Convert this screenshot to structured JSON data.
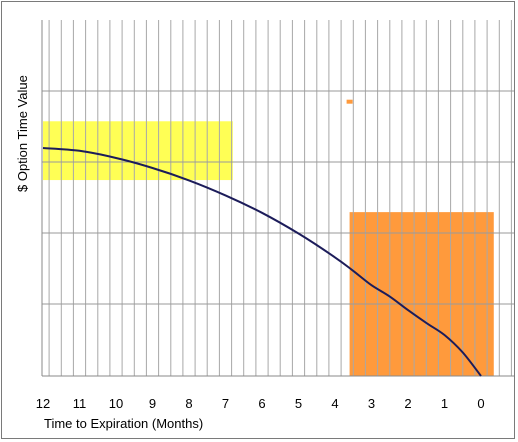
{
  "chart_data": {
    "type": "line",
    "title": "",
    "xlabel": "Time to Expiration (Months)",
    "ylabel": "$ Option Time Value",
    "x_ticks": [
      12,
      11,
      10,
      9,
      8,
      7,
      6,
      5,
      4,
      3,
      2,
      1,
      0
    ],
    "x_reversed": true,
    "xlim": [
      12,
      0
    ],
    "ylim": [
      0,
      1
    ],
    "y_tick_labels": [],
    "grid": "on",
    "legend": "none",
    "series": [
      {
        "x": [
          12,
          11,
          10,
          9,
          8,
          7,
          6,
          5,
          4,
          3.5,
          3,
          2.5,
          2,
          1.5,
          1,
          0.5,
          0
        ],
        "y": [
          0.64,
          0.632,
          0.612,
          0.584,
          0.549,
          0.507,
          0.458,
          0.4,
          0.333,
          0.295,
          0.255,
          0.223,
          0.185,
          0.149,
          0.115,
          0.066,
          0
        ],
        "color": "#1c1c5a"
      }
    ],
    "highlights": [
      {
        "x_range": [
          12,
          6.8
        ],
        "y_range": [
          0.55,
          0.715
        ],
        "color": "#ffff55"
      },
      {
        "x_range": [
          3.6,
          -0.35
        ],
        "y_range": [
          0,
          0.46
        ],
        "color": "#ff9a3c"
      }
    ],
    "markers": [
      {
        "x": 3.6,
        "y": 0.77,
        "color": "#ff9a3c"
      }
    ]
  }
}
